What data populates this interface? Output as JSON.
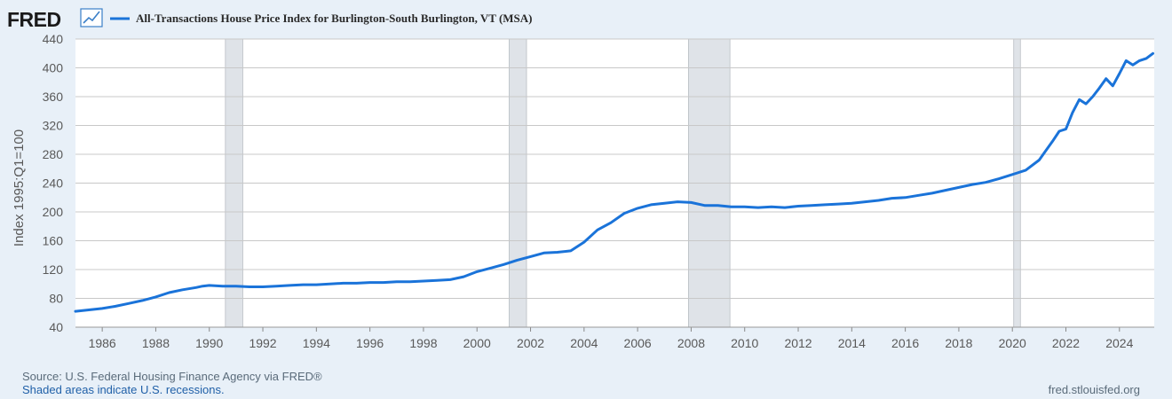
{
  "header": {
    "brand": "FRED",
    "brand_mark": "trend-line-icon"
  },
  "footer": {
    "source": "Source: U.S. Federal Housing Finance Agency via FRED®",
    "recession_note": "Shaded areas indicate U.S. recessions.",
    "site": "fred.stlouisfed.org"
  },
  "colors": {
    "series": "#1a73d9",
    "recession": "#dfe3e8",
    "grid": "#c8c8c8",
    "plot_bg": "#ffffff",
    "page_bg": "#e8f0f8"
  },
  "chart_data": {
    "type": "line",
    "ylabel": "Index 1995:Q1=100",
    "xlim": [
      1985.0,
      2025.3
    ],
    "ylim": [
      40,
      440
    ],
    "yticks": [
      40,
      80,
      120,
      160,
      200,
      240,
      280,
      320,
      360,
      400,
      440
    ],
    "xticks": [
      1986,
      1988,
      1990,
      1992,
      1994,
      1996,
      1998,
      2000,
      2002,
      2004,
      2006,
      2008,
      2010,
      2012,
      2014,
      2016,
      2018,
      2020,
      2022,
      2024
    ],
    "grid": true,
    "legend": "top",
    "recessions": [
      [
        1990.6,
        1991.25
      ],
      [
        2001.2,
        2001.85
      ],
      [
        2007.9,
        2009.45
      ],
      [
        2020.05,
        2020.3
      ]
    ],
    "series": [
      {
        "name": "All-Transactions House Price Index for Burlington-South Burlington, VT (MSA)",
        "x": [
          1985.0,
          1985.5,
          1986.0,
          1986.5,
          1987.0,
          1987.5,
          1988.0,
          1988.5,
          1989.0,
          1989.5,
          1989.75,
          1990.0,
          1990.5,
          1991.0,
          1991.5,
          1992.0,
          1992.5,
          1993.0,
          1993.5,
          1994.0,
          1994.5,
          1995.0,
          1995.5,
          1996.0,
          1996.5,
          1997.0,
          1997.5,
          1998.0,
          1998.5,
          1999.0,
          1999.5,
          2000.0,
          2000.5,
          2001.0,
          2001.5,
          2002.0,
          2002.5,
          2003.0,
          2003.5,
          2004.0,
          2004.5,
          2005.0,
          2005.5,
          2006.0,
          2006.5,
          2007.0,
          2007.5,
          2008.0,
          2008.5,
          2009.0,
          2009.5,
          2010.0,
          2010.5,
          2011.0,
          2011.5,
          2012.0,
          2012.5,
          2013.0,
          2013.5,
          2014.0,
          2014.5,
          2015.0,
          2015.5,
          2016.0,
          2016.5,
          2017.0,
          2017.5,
          2018.0,
          2018.5,
          2019.0,
          2019.5,
          2020.0,
          2020.5,
          2021.0,
          2021.25,
          2021.5,
          2021.75,
          2022.0,
          2022.25,
          2022.5,
          2022.75,
          2023.0,
          2023.25,
          2023.5,
          2023.75,
          2024.0,
          2024.25,
          2024.5,
          2024.75,
          2025.0,
          2025.25
        ],
        "values": [
          62,
          64,
          66,
          69,
          73,
          77,
          82,
          88,
          92,
          95,
          97,
          98,
          97,
          97,
          96,
          96,
          97,
          98,
          99,
          99,
          100,
          101,
          101,
          102,
          102,
          103,
          103,
          104,
          105,
          106,
          110,
          117,
          122,
          127,
          133,
          138,
          143,
          144,
          146,
          158,
          175,
          185,
          198,
          205,
          210,
          212,
          214,
          213,
          209,
          209,
          207,
          207,
          206,
          207,
          206,
          208,
          209,
          210,
          211,
          212,
          214,
          216,
          219,
          220,
          223,
          226,
          230,
          234,
          238,
          241,
          246,
          252,
          258,
          272,
          285,
          298,
          312,
          315,
          338,
          356,
          350,
          360,
          372,
          385,
          375,
          392,
          410,
          404,
          410,
          413,
          420
        ]
      }
    ]
  }
}
